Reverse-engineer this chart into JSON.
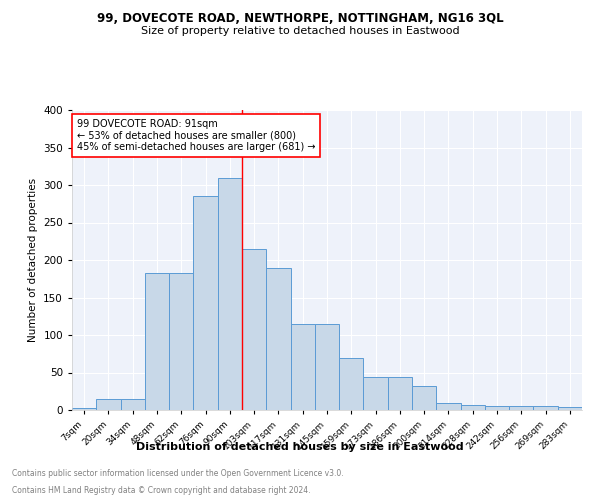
{
  "title1": "99, DOVECOTE ROAD, NEWTHORPE, NOTTINGHAM, NG16 3QL",
  "title2": "Size of property relative to detached houses in Eastwood",
  "xlabel": "Distribution of detached houses by size in Eastwood",
  "ylabel": "Number of detached properties",
  "bar_labels": [
    "7sqm",
    "20sqm",
    "34sqm",
    "48sqm",
    "62sqm",
    "76sqm",
    "90sqm",
    "103sqm",
    "117sqm",
    "131sqm",
    "145sqm",
    "159sqm",
    "173sqm",
    "186sqm",
    "200sqm",
    "214sqm",
    "228sqm",
    "242sqm",
    "256sqm",
    "269sqm",
    "283sqm"
  ],
  "bar_values": [
    3,
    15,
    15,
    183,
    183,
    285,
    310,
    215,
    190,
    115,
    115,
    70,
    44,
    44,
    32,
    10,
    7,
    6,
    5,
    5,
    4
  ],
  "bar_color": "#c8d8e8",
  "bar_edge_color": "#5b9bd5",
  "vline_color": "red",
  "vline_x": 6.5,
  "annotation_title": "99 DOVECOTE ROAD: 91sqm",
  "annotation_line1": "← 53% of detached houses are smaller (800)",
  "annotation_line2": "45% of semi-detached houses are larger (681) →",
  "annotation_box_color": "white",
  "annotation_box_edge": "red",
  "footer1": "Contains HM Land Registry data © Crown copyright and database right 2024.",
  "footer2": "Contains public sector information licensed under the Open Government Licence v3.0.",
  "background_color": "#eef2fa",
  "ylim": [
    0,
    400
  ],
  "yticks": [
    0,
    50,
    100,
    150,
    200,
    250,
    300,
    350,
    400
  ]
}
